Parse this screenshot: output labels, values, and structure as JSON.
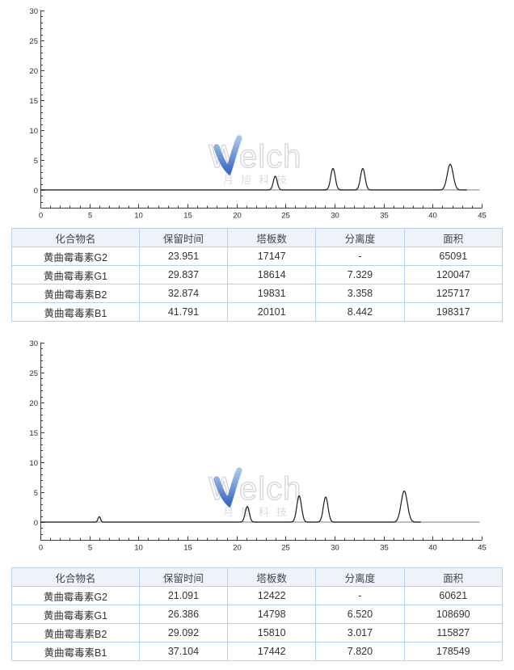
{
  "watermark": {
    "brand": "Welch",
    "subtext": "月旭科技",
    "outline_color": "#d2d6db",
    "subtext_color": "#d9dce0",
    "check_top": "#a7c6ee",
    "check_bottom": "#3e6cc4"
  },
  "table_headers": [
    "化合物名",
    "保留时间",
    "塔板数",
    "分离度",
    "面积"
  ],
  "tables": [
    {
      "rows": [
        [
          "黄曲霉毒素G2",
          "23.951",
          "17147",
          "-",
          "65091"
        ],
        [
          "黄曲霉毒素G1",
          "29.837",
          "18614",
          "7.329",
          "120047"
        ],
        [
          "黄曲霉毒素B2",
          "32.874",
          "19831",
          "3.358",
          "125717"
        ],
        [
          "黄曲霉毒素B1",
          "41.791",
          "20101",
          "8.442",
          "198317"
        ]
      ]
    },
    {
      "rows": [
        [
          "黄曲霉毒素G2",
          "21.091",
          "12422",
          "-",
          "60621"
        ],
        [
          "黄曲霉毒素G1",
          "26.386",
          "14798",
          "6.520",
          "108690"
        ],
        [
          "黄曲霉毒素B2",
          "29.092",
          "15810",
          "3.017",
          "115827"
        ],
        [
          "黄曲霉毒素B1",
          "37.104",
          "17442",
          "7.820",
          "178549"
        ]
      ]
    }
  ],
  "chart_data": [
    {
      "type": "line",
      "title": "",
      "xlabel": "",
      "ylabel": "",
      "xlim": [
        0,
        45
      ],
      "ylim": [
        -3,
        30
      ],
      "x_major_ticks": [
        0,
        5,
        10,
        15,
        20,
        25,
        30,
        35,
        40,
        45
      ],
      "y_major_ticks": [
        0,
        5,
        10,
        15,
        20,
        25,
        30
      ],
      "minor_step": 1,
      "grid": false,
      "legend": "none",
      "axis_color": "#3c3c3c",
      "label_color": "#2b2b2b",
      "trace_color": "#1b1b1b",
      "tail_color": "#999999",
      "trace_end": 44.8,
      "black_end": 43.5,
      "peaks": [
        {
          "rt": 23.951,
          "height": 2.3,
          "sigma": 0.2
        },
        {
          "rt": 29.837,
          "height": 3.6,
          "sigma": 0.23
        },
        {
          "rt": 32.874,
          "height": 3.6,
          "sigma": 0.23
        },
        {
          "rt": 41.791,
          "height": 4.3,
          "sigma": 0.3
        }
      ]
    },
    {
      "type": "line",
      "title": "",
      "xlabel": "",
      "ylabel": "",
      "xlim": [
        0,
        45
      ],
      "ylim": [
        -3,
        30
      ],
      "x_major_ticks": [
        0,
        5,
        10,
        15,
        20,
        25,
        30,
        35,
        40,
        45
      ],
      "y_major_ticks": [
        0,
        5,
        10,
        15,
        20,
        25,
        30
      ],
      "minor_step": 1,
      "grid": false,
      "legend": "none",
      "axis_color": "#3c3c3c",
      "label_color": "#2b2b2b",
      "trace_color": "#1b1b1b",
      "tail_color": "#999999",
      "trace_end": 44.8,
      "black_end": 38.8,
      "peaks": [
        {
          "rt": 6.0,
          "height": 0.9,
          "sigma": 0.13
        },
        {
          "rt": 21.091,
          "height": 2.6,
          "sigma": 0.21
        },
        {
          "rt": 26.386,
          "height": 4.4,
          "sigma": 0.24
        },
        {
          "rt": 29.092,
          "height": 4.2,
          "sigma": 0.24
        },
        {
          "rt": 37.104,
          "height": 5.2,
          "sigma": 0.32
        }
      ]
    }
  ]
}
